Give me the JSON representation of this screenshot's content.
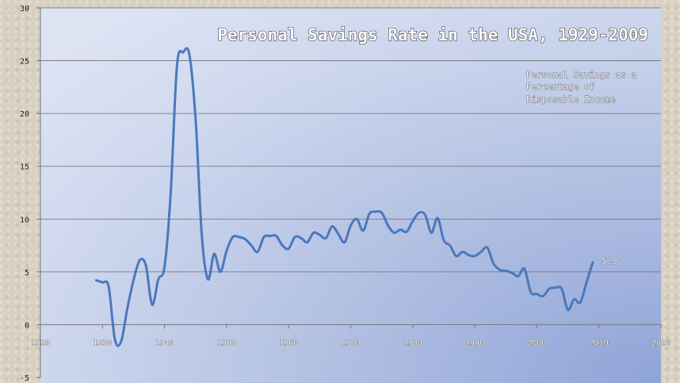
{
  "chart_data": {
    "type": "line",
    "title": "Personal Savings Rate in the USA, 1929-2009",
    "annotation": [
      "Personal Savings as a",
      "Percentage of",
      "Disposable Income"
    ],
    "xlabel": "",
    "ylabel": "",
    "xlim": [
      1920,
      2020
    ],
    "ylim": [
      -5,
      30
    ],
    "x_ticks": [
      1920,
      1930,
      1940,
      1950,
      1960,
      1970,
      1980,
      1990,
      2000,
      2010,
      2020
    ],
    "y_ticks": [
      -5,
      0,
      5,
      10,
      15,
      20,
      25,
      30
    ],
    "grid": "horizontal",
    "legend": "none",
    "series": [
      {
        "color": "#4a78bb",
        "x": [
          1929,
          1930,
          1931,
          1932,
          1933,
          1934,
          1935,
          1936,
          1937,
          1938,
          1939,
          1940,
          1941,
          1942,
          1943,
          1944,
          1945,
          1946,
          1947,
          1948,
          1949,
          1950,
          1951,
          1952,
          1953,
          1954,
          1955,
          1956,
          1957,
          1958,
          1959,
          1960,
          1961,
          1962,
          1963,
          1964,
          1965,
          1966,
          1967,
          1968,
          1969,
          1970,
          1971,
          1972,
          1973,
          1974,
          1975,
          1976,
          1977,
          1978,
          1979,
          1980,
          1981,
          1982,
          1983,
          1984,
          1985,
          1986,
          1987,
          1988,
          1989,
          1990,
          1991,
          1992,
          1993,
          1994,
          1995,
          1996,
          1997,
          1998,
          1999,
          2000,
          2001,
          2002,
          2003,
          2004,
          2005,
          2006,
          2007,
          2008,
          2009
        ],
        "y": [
          4.2,
          4.0,
          3.6,
          -1.4,
          -1.6,
          1.5,
          4.2,
          6.1,
          5.6,
          1.9,
          4.3,
          5.5,
          12.5,
          24.5,
          25.8,
          25.6,
          19.5,
          8.5,
          4.3,
          6.7,
          5.0,
          7.0,
          8.3,
          8.3,
          8.1,
          7.5,
          6.9,
          8.3,
          8.4,
          8.4,
          7.5,
          7.2,
          8.3,
          8.2,
          7.8,
          8.7,
          8.5,
          8.2,
          9.3,
          8.6,
          7.8,
          9.4,
          10.0,
          8.9,
          10.5,
          10.7,
          10.6,
          9.4,
          8.7,
          9.0,
          8.8,
          9.8,
          10.6,
          10.4,
          8.7,
          10.1,
          8.0,
          7.5,
          6.5,
          6.9,
          6.6,
          6.5,
          6.9,
          7.3,
          5.8,
          5.2,
          5.1,
          4.9,
          4.6,
          5.3,
          3.1,
          2.9,
          2.7,
          3.4,
          3.5,
          3.4,
          1.4,
          2.4,
          2.1,
          4.0,
          5.9
        ],
        "last_label": "5.9"
      }
    ]
  }
}
